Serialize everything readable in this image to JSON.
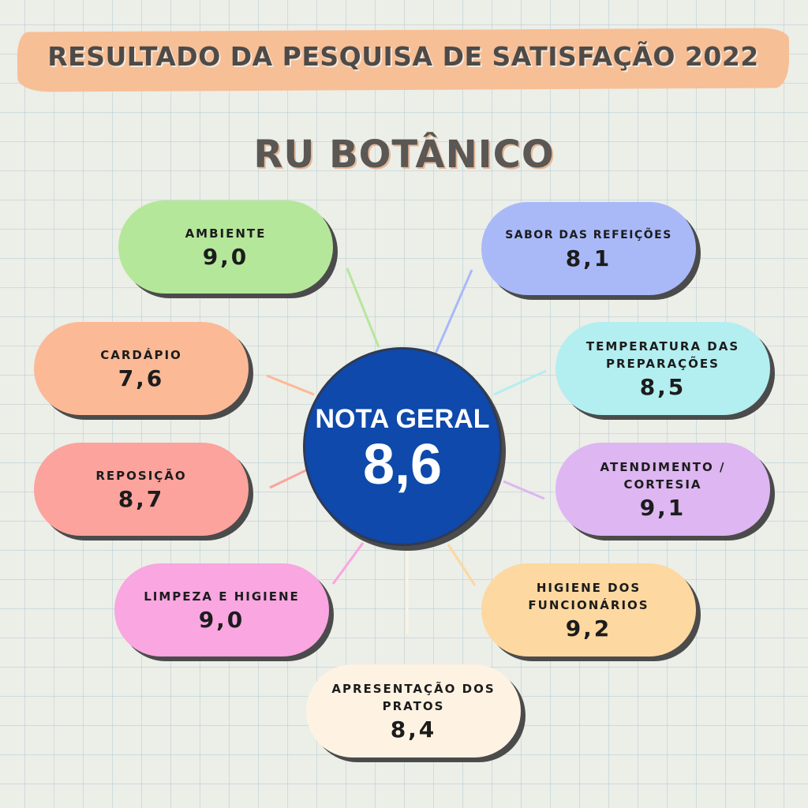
{
  "title": "RESULTADO DA PESQUISA DE SATISFAÇÃO 2022",
  "subtitle": "RU BOTÂNICO",
  "overall": {
    "label": "NOTA GERAL",
    "value": "8,6"
  },
  "colors": {
    "banner": "#f7bf96",
    "center": "#0e49ab",
    "ambiente": "#b5e79a",
    "cardapio": "#fcb996",
    "reposicao": "#fba39c",
    "limpeza": "#f9a6e1",
    "apresentacao": "#fef3e2",
    "higiene_funcionarios": "#fdd8a0",
    "atendimento": "#ddb6f2",
    "temperatura": "#b3eef0",
    "sabor": "#a9b9f8"
  },
  "items": {
    "ambiente": {
      "label": "AMBIENTE",
      "score": "9,0"
    },
    "sabor": {
      "label": "SABOR DAS REFEIÇÕES",
      "score": "8,1"
    },
    "cardapio": {
      "label": "CARDÁPIO",
      "score": "7,6"
    },
    "temperatura": {
      "label": "TEMPERATURA DAS PREPARAÇÕES",
      "score": "8,5"
    },
    "reposicao": {
      "label": "REPOSIÇÃO",
      "score": "8,7"
    },
    "atendimento": {
      "label": "ATENDIMENTO / CORTESIA",
      "score": "9,1"
    },
    "limpeza": {
      "label": "LIMPEZA E HIGIENE",
      "score": "9,0"
    },
    "higiene_funcionarios": {
      "label": "HIGIENE DOS FUNCIONÁRIOS",
      "score": "9,2"
    },
    "apresentacao": {
      "label": "APRESENTAÇÃO DOS PRATOS",
      "score": "8,4"
    }
  }
}
